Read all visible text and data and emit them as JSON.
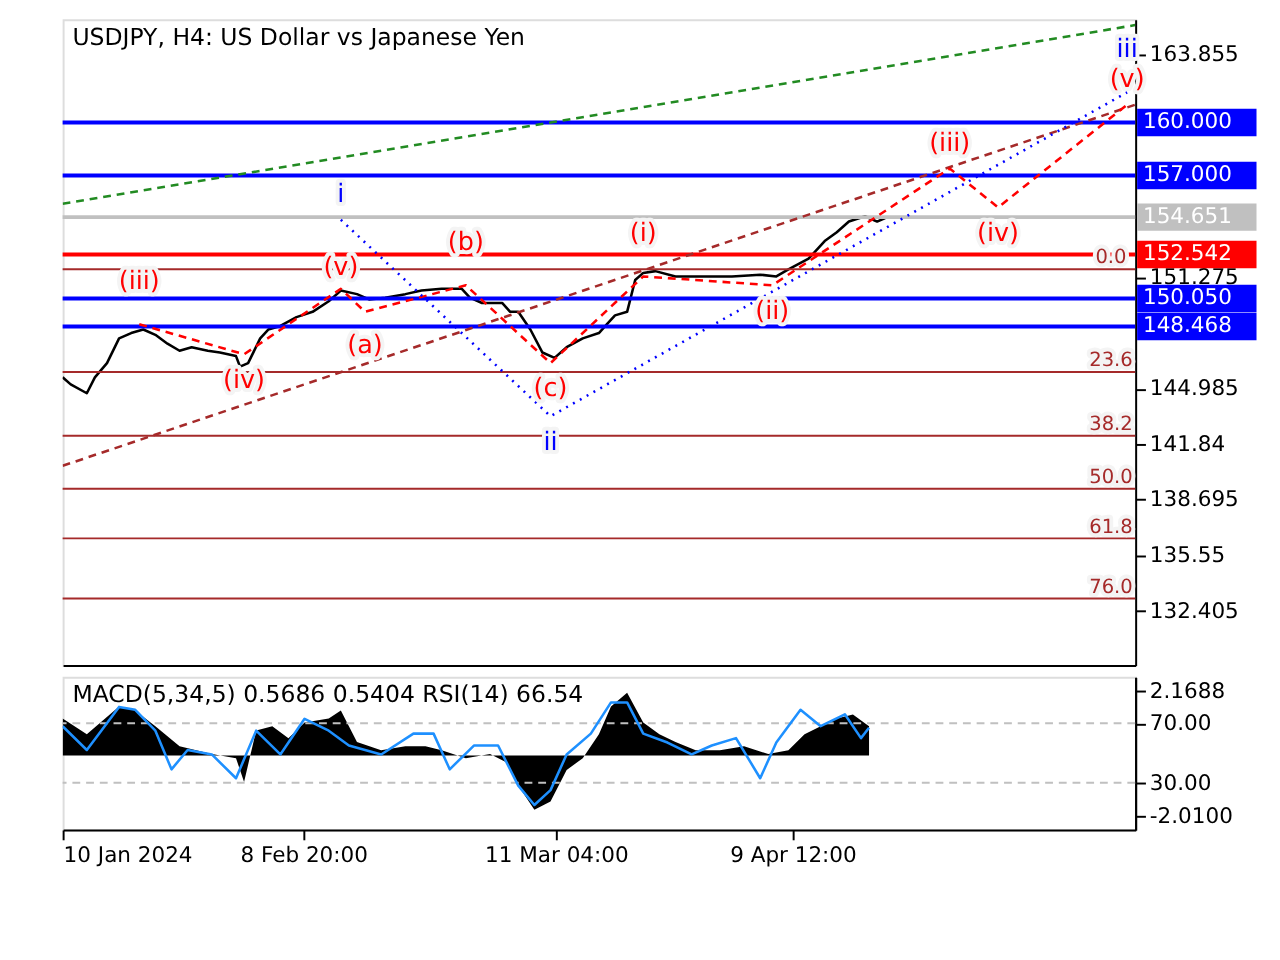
{
  "chart_data": [
    {
      "type": "line",
      "title": "USDJPY, H4:  US Dollar vs Japanese Yen",
      "xlim": [
        "2024-01-10",
        "2024-05-22"
      ],
      "ylim": [
        129.34,
        165.83
      ],
      "tick_labels": "y",
      "grid": false,
      "yticks": [
        132.405,
        135.55,
        138.695,
        141.84,
        144.985,
        151.275,
        163.855
      ],
      "series": [
        {
          "color": "#000000",
          "x": [
            "2024-01-10",
            "2024-01-11",
            "2024-01-13",
            "2024-01-14",
            "2024-01-15T12:00",
            "2024-01-17",
            "2024-01-18T12:00",
            "2024-01-20",
            "2024-01-21T12:00",
            "2024-01-23",
            "2024-01-24T12:00",
            "2024-01-26",
            "2024-01-28",
            "2024-01-29T12:00",
            "2024-01-31T12:00",
            "2024-02-01",
            "2024-02-02",
            "2024-02-03T12:00",
            "2024-02-04T12:00",
            "2024-02-06",
            "2024-02-08",
            "2024-02-10",
            "2024-02-12",
            "2024-02-13T12:00",
            "2024-02-15T12:00",
            "2024-02-17",
            "2024-02-19",
            "2024-02-21T12:00",
            "2024-02-23T12:00",
            "2024-02-26",
            "2024-02-28T12:00",
            "2024-02-29T12:00",
            "2024-03-02",
            "2024-03-04T12:00",
            "2024-03-05T12:00",
            "2024-03-06T12:00",
            "2024-03-08",
            "2024-03-09T12:00",
            "2024-03-11",
            "2024-03-12T12:00",
            "2024-03-14T12:00",
            "2024-03-16T12:00",
            "2024-03-17T12:00",
            "2024-03-18T12:00",
            "2024-03-20",
            "2024-03-21",
            "2024-03-22",
            "2024-03-23T12:00",
            "2024-03-26",
            "2024-03-29T12:00",
            "2024-04-02",
            "2024-04-05T12:00",
            "2024-04-07T12:00",
            "2024-04-09",
            "2024-04-11T12:00",
            "2024-04-13T12:00",
            "2024-04-15",
            "2024-04-16T12:00",
            "2024-04-18T12:00",
            "2024-04-20",
            "2024-04-21"
          ],
          "values": [
            145.6,
            145.2,
            144.7,
            145.6,
            146.4,
            147.8,
            148.1,
            148.3,
            148.0,
            147.5,
            147.1,
            147.3,
            147.1,
            147.0,
            146.8,
            146.2,
            146.4,
            147.8,
            148.3,
            148.5,
            149.0,
            149.3,
            149.9,
            150.5,
            150.3,
            150.0,
            150.1,
            150.3,
            150.5,
            150.6,
            150.6,
            150.1,
            149.8,
            149.8,
            149.3,
            149.3,
            148.3,
            147.0,
            146.7,
            147.3,
            147.8,
            148.1,
            148.6,
            149.1,
            149.3,
            151.1,
            151.5,
            151.6,
            151.3,
            151.3,
            151.3,
            151.4,
            151.3,
            151.7,
            152.3,
            153.3,
            153.8,
            154.4,
            154.7,
            154.4,
            154.6
          ]
        },
        {
          "color": "#228b22",
          "line_style": "dashed",
          "x": [
            "2024-01-10",
            "2024-05-22"
          ],
          "values": [
            155.4,
            165.5
          ]
        },
        {
          "color": "#a52a2a",
          "line_style": "dashed",
          "x": [
            "2024-01-10",
            "2024-05-22"
          ],
          "values": [
            140.6,
            161.0
          ]
        },
        {
          "color": "#ff0000",
          "line_style": "dashed",
          "x": [
            "2024-01-19T12:00",
            "2024-02-01T12:00",
            "2024-02-13T12:00",
            "2024-02-16T12:00",
            "2024-02-29",
            "2024-03-10T12:00",
            "2024-03-22",
            "2024-04-07",
            "2024-04-29",
            "2024-05-05",
            "2024-05-21"
          ],
          "values": [
            148.6,
            146.9,
            150.6,
            149.3,
            150.8,
            146.4,
            151.3,
            150.8,
            157.4,
            155.2,
            161.0
          ],
          "value_labels": [
            "(iii)",
            "(iv)",
            "(v)",
            "(a)",
            "(b)",
            "(c)",
            "(i)",
            "(ii)",
            "(iii)",
            "(iv)",
            "(v)"
          ]
        },
        {
          "color": "#0000ff",
          "line_style": "dotted",
          "x": [
            "2024-02-13T12:00",
            "2024-03-10T12:00",
            "2024-05-21"
          ],
          "values": [
            154.5,
            143.4,
            161.7
          ],
          "value_labels": [
            "i",
            "ii",
            "iii"
          ]
        }
      ],
      "ref_lines": [
        {
          "axis": "y",
          "value": 160.0,
          "label": "160.000",
          "color": "#0000ff"
        },
        {
          "axis": "y",
          "value": 157.0,
          "label": "157.000",
          "color": "#0000ff"
        },
        {
          "axis": "y",
          "value": 154.651,
          "label": "154.651",
          "color": "#c0c0c0"
        },
        {
          "axis": "y",
          "value": 152.542,
          "label": "152.542",
          "color": "#ff0000"
        },
        {
          "axis": "y",
          "value": 150.05,
          "label": "150.050",
          "color": "#0000ff"
        },
        {
          "axis": "y",
          "value": 148.468,
          "label": "148.468",
          "color": "#0000ff"
        },
        {
          "axis": "y",
          "value": 151.7,
          "color": "#a52a2a"
        },
        {
          "axis": "y",
          "value": 145.9,
          "color": "#a52a2a"
        },
        {
          "axis": "y",
          "value": 142.3,
          "color": "#a52a2a"
        },
        {
          "axis": "y",
          "value": 139.3,
          "color": "#a52a2a"
        },
        {
          "axis": "y",
          "value": 136.5,
          "color": "#a52a2a"
        },
        {
          "axis": "y",
          "value": 133.1,
          "color": "#a52a2a"
        }
      ],
      "annotations": [
        {
          "text": "0.0",
          "x": "2024-05-19",
          "y": 151.7
        },
        {
          "text": "23.6",
          "x": "2024-05-19",
          "y": 145.9
        },
        {
          "text": "38.2",
          "x": "2024-05-19",
          "y": 142.3
        },
        {
          "text": "50.0",
          "x": "2024-05-19",
          "y": 139.3
        },
        {
          "text": "61.8",
          "x": "2024-05-19",
          "y": 136.5
        },
        {
          "text": "76.0",
          "x": "2024-05-19",
          "y": 133.1
        }
      ]
    },
    {
      "type": "area",
      "title": "MACD(5,34,5) 0.5686 0.5404 RSI(14) 66.54",
      "xlim": [
        "2024-01-10",
        "2024-05-22"
      ],
      "ylim": [
        -2.474,
        2.633
      ],
      "y2lim": [
        -1.5,
        101.2
      ],
      "grid": false,
      "xticks": [
        {
          "value": "2024-01-10",
          "label": "10 Jan 2024"
        },
        {
          "value": "2024-02-08T20:00",
          "label": "8 Feb 20:00"
        },
        {
          "value": "2024-03-11T04:00",
          "label": "11 Mar 04:00"
        },
        {
          "value": "2024-04-09T12:00",
          "label": "9 Apr 12:00"
        }
      ],
      "yticks": [
        2.1688,
        {
          "value": -2.01,
          "label": "-2.0100"
        }
      ],
      "y2ticks": [
        {
          "value": 70,
          "label": "70.00"
        },
        {
          "value": 30,
          "label": "30.00"
        }
      ],
      "series": [
        {
          "color": "#000000",
          "x": [
            "2024-01-10",
            "2024-01-13",
            "2024-01-17",
            "2024-01-19",
            "2024-01-21T12:00",
            "2024-01-24T12:00",
            "2024-01-28T12:00",
            "2024-01-31T12:00",
            "2024-02-01T12:00",
            "2024-02-03",
            "2024-02-05",
            "2024-02-07",
            "2024-02-09",
            "2024-02-12",
            "2024-02-13T12:00",
            "2024-02-15T12:00",
            "2024-02-18T12:00",
            "2024-02-21T12:00",
            "2024-02-24",
            "2024-02-26",
            "2024-02-29",
            "2024-03-03",
            "2024-03-05",
            "2024-03-06T12:00",
            "2024-03-08T12:00",
            "2024-03-10T12:00",
            "2024-03-12T12:00",
            "2024-03-14T12:00",
            "2024-03-16T12:00",
            "2024-03-18",
            "2024-03-20",
            "2024-03-22",
            "2024-03-24",
            "2024-03-26",
            "2024-03-28T12:00",
            "2024-03-31T12:00",
            "2024-04-03T12:00",
            "2024-04-06T12:00",
            "2024-04-09",
            "2024-04-11",
            "2024-04-13",
            "2024-04-15",
            "2024-04-17",
            "2024-04-19"
          ],
          "values": [
            1.24,
            0.71,
            1.64,
            1.51,
            0.98,
            0.31,
            0.05,
            -0.09,
            -0.88,
            0.84,
            0.98,
            0.58,
            1.11,
            1.24,
            1.51,
            0.45,
            0.18,
            0.31,
            0.31,
            0.18,
            -0.09,
            0.05,
            -0.22,
            -1.01,
            -1.81,
            -1.54,
            -0.48,
            -0.09,
            0.71,
            1.64,
            2.1,
            1.11,
            0.71,
            0.45,
            0.18,
            0.18,
            0.31,
            0.05,
            0.18,
            0.71,
            0.98,
            1.24,
            1.37,
            0.98
          ]
        },
        {
          "type": "line",
          "axis": "y2",
          "color": "#1e90ff",
          "x": [
            "2024-01-10",
            "2024-01-13",
            "2024-01-17",
            "2024-01-19",
            "2024-01-21T12:00",
            "2024-01-23T12:00",
            "2024-01-25T12:00",
            "2024-01-28T12:00",
            "2024-01-31T12:00",
            "2024-02-03",
            "2024-02-06",
            "2024-02-09",
            "2024-02-12",
            "2024-02-14T12:00",
            "2024-02-18T12:00",
            "2024-02-22T12:00",
            "2024-02-25",
            "2024-02-27",
            "2024-03-01",
            "2024-03-04",
            "2024-03-06T12:00",
            "2024-03-08T12:00",
            "2024-03-10T12:00",
            "2024-03-12T12:00",
            "2024-03-15T12:00",
            "2024-03-18",
            "2024-03-20",
            "2024-03-22",
            "2024-03-25",
            "2024-03-28",
            "2024-03-30T12:00",
            "2024-04-02T12:00",
            "2024-04-05T12:00",
            "2024-04-07T12:00",
            "2024-04-10T12:00",
            "2024-04-13",
            "2024-04-16",
            "2024-04-18",
            "2024-04-19"
          ],
          "values": [
            68,
            52,
            81,
            79,
            65,
            39,
            52,
            49,
            33,
            65,
            49,
            73,
            65,
            55,
            49,
            63,
            63,
            39,
            55,
            55,
            28,
            15,
            25,
            49,
            63,
            84,
            84,
            63,
            57,
            49,
            55,
            60,
            33,
            57,
            79,
            68,
            76,
            60,
            67
          ]
        }
      ],
      "ref_lines": [
        {
          "axis": "y2",
          "value": 70,
          "color": "#c0c0c0",
          "line_style": "dashed"
        },
        {
          "axis": "y2",
          "value": 30,
          "color": "#c0c0c0",
          "line_style": "dashed"
        }
      ]
    }
  ]
}
